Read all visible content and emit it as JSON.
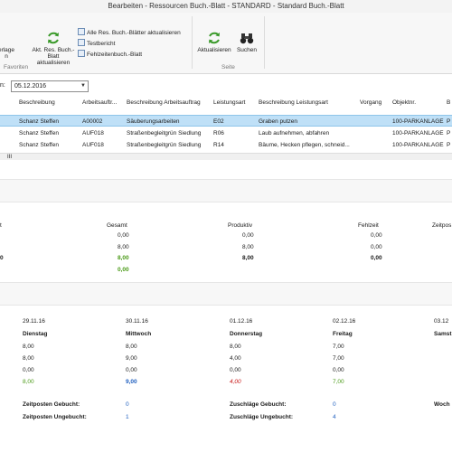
{
  "window": {
    "title": "Bearbeiten - Ressourcen Buch.-Blatt - STANDARD - Standard Buch.-Blatt"
  },
  "ribbon": {
    "btn_partial": "erlage",
    "btn_partial2": "n",
    "btn_update_line1": "Akt. Res. Buch.-Blatt",
    "btn_update_line2": "aktualisieren",
    "small_all": "Alle Res. Buch.-Blätter aktualisieren",
    "small_test": "Testbericht",
    "small_absence": "Fehlzeitenbuch.-Blatt",
    "group_favorites": "Favoriten",
    "btn_refresh": "Aktualisieren",
    "btn_search": "Suchen",
    "group_page": "Seite"
  },
  "date": {
    "label": "n:",
    "value": "05.12.2016"
  },
  "grid": {
    "headers": [
      "Beschreibung",
      "Arbeitsauftr...",
      "Beschreibung Arbeitsauftrag",
      "Leistungsart",
      "Beschreibung Leistungsart",
      "Vorgang",
      "Objektnr.",
      "B"
    ],
    "rows": [
      [
        "Schanz Steffen",
        "A00002",
        "Säuberungsarbeiten",
        "E02",
        "Graben putzen",
        "",
        "100-PARKANLAGE",
        "P"
      ],
      [
        "Schanz Steffen",
        "AUF018",
        "Straßenbegleitgrün Siedlung",
        "R06",
        "Laub aufnehmen, abfahren",
        "",
        "100-PARKANLAGE",
        "P"
      ],
      [
        "Schanz Steffen",
        "AUF018",
        "Straßenbegleitgrün Siedlung",
        "R14",
        "Bäume, Hecken pflegen, schneid...",
        "",
        "100-PARKANLAGE",
        "P"
      ]
    ],
    "scroll_label": "III"
  },
  "summary": {
    "headers": {
      "left": "t",
      "gesamt": "Gesamt",
      "produktiv": "Produktiv",
      "fehlzeit": "Fehlzeit",
      "zeitpos": "Zeitpos"
    },
    "left_value": "0",
    "gesamt": [
      "0,00",
      "8,00",
      "8,00",
      "0,00"
    ],
    "produktiv": [
      "0,00",
      "8,00",
      "8,00"
    ],
    "fehlzeit": [
      "0,00",
      "0,00",
      "0,00"
    ]
  },
  "days": {
    "columns": [
      {
        "date": "29.11.16",
        "day": "Dienstag",
        "v1": "8,00",
        "v2": "8,00",
        "v3": "0,00",
        "v4": "8,00"
      },
      {
        "date": "30.11.16",
        "day": "Mittwoch",
        "v1": "8,00",
        "v2": "9,00",
        "v3": "0,00",
        "v4": "9,00"
      },
      {
        "date": "01.12.16",
        "day": "Donnerstag",
        "v1": "8,00",
        "v2": "4,00",
        "v3": "0,00",
        "v4": "4,00"
      },
      {
        "date": "02.12.16",
        "day": "Freitag",
        "v1": "7,00",
        "v2": "7,00",
        "v3": "0,00",
        "v4": "7,00"
      },
      {
        "date": "03.12",
        "day": "Samst",
        "v1": "",
        "v2": "",
        "v3": "",
        "v4": ""
      }
    ],
    "stats": {
      "zeitposten_gebucht_label": "Zeitposten Gebucht:",
      "zeitposten_gebucht": "0",
      "zeitposten_ungebucht_label": "Zeitposten Ungebucht:",
      "zeitposten_ungebucht": "1",
      "zuschlaege_gebucht_label": "Zuschläge Gebucht:",
      "zuschlaege_gebucht": "0",
      "zuschlaege_ungebucht_label": "Zuschläge Ungebucht:",
      "zuschlaege_ungebucht": "4",
      "woch_label": "Woch"
    }
  },
  "colors": {
    "selected_row": "#bfe0f7",
    "green": "#4a9a17",
    "blue": "#1f5fbf",
    "red": "#c81818"
  }
}
